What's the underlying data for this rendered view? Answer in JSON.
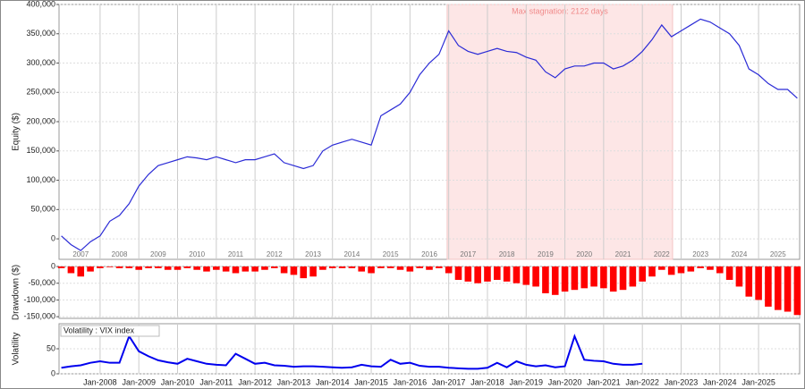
{
  "chart_data": [
    {
      "type": "line",
      "y_label": "Equity ($)",
      "x": [
        2007,
        2007.25,
        2007.5,
        2007.75,
        2008,
        2008.25,
        2008.5,
        2008.75,
        2009,
        2009.25,
        2009.5,
        2009.75,
        2010,
        2010.25,
        2010.5,
        2010.75,
        2011,
        2011.25,
        2011.5,
        2011.75,
        2012,
        2012.25,
        2012.5,
        2012.75,
        2013,
        2013.25,
        2013.5,
        2013.75,
        2014,
        2014.25,
        2014.5,
        2014.75,
        2015,
        2015.25,
        2015.5,
        2015.75,
        2016,
        2016.25,
        2016.5,
        2016.75,
        2017,
        2017.25,
        2017.5,
        2017.75,
        2018,
        2018.25,
        2018.5,
        2018.75,
        2019,
        2019.25,
        2019.5,
        2019.75,
        2020,
        2020.25,
        2020.5,
        2020.75,
        2021,
        2021.25,
        2021.5,
        2021.75,
        2022,
        2022.25,
        2022.5,
        2022.75,
        2023,
        2023.25,
        2023.5,
        2023.75,
        2024,
        2024.25,
        2024.5,
        2024.75,
        2025,
        2025.25,
        2025.5,
        2025.75,
        2026
      ],
      "values": [
        5000,
        -10000,
        -20000,
        -5000,
        5000,
        30000,
        40000,
        60000,
        90000,
        110000,
        125000,
        130000,
        135000,
        140000,
        138000,
        135000,
        140000,
        135000,
        130000,
        135000,
        135000,
        140000,
        145000,
        130000,
        125000,
        120000,
        125000,
        150000,
        160000,
        165000,
        170000,
        165000,
        160000,
        210000,
        220000,
        230000,
        250000,
        280000,
        300000,
        315000,
        355000,
        330000,
        320000,
        315000,
        320000,
        325000,
        320000,
        318000,
        310000,
        305000,
        285000,
        275000,
        290000,
        295000,
        295000,
        300000,
        300000,
        290000,
        295000,
        305000,
        320000,
        340000,
        365000,
        345000,
        355000,
        365000,
        375000,
        370000,
        360000,
        350000,
        330000,
        290000,
        280000,
        265000,
        255000,
        255000,
        240000
      ],
      "color": "#2b2bd6",
      "xlim": [
        2006.94,
        2026.06
      ],
      "ylim": [
        -35000,
        400000
      ],
      "yticks": [
        0,
        {
          "value": 50000,
          "label": "50,000"
        },
        {
          "value": 100000,
          "label": "100,000"
        },
        {
          "value": 150000,
          "label": "150,000"
        },
        {
          "value": 200000,
          "label": "200,000"
        },
        {
          "value": 250000,
          "label": "250,000"
        },
        {
          "value": 300000,
          "label": "300,000"
        },
        {
          "value": 350000,
          "label": "350,000"
        },
        {
          "value": 400000,
          "label": "400,000"
        }
      ],
      "xticks": [
        {
          "value": 2007.5,
          "label": "2007"
        },
        {
          "value": 2008.5,
          "label": "2008"
        },
        {
          "value": 2009.5,
          "label": "2009"
        },
        {
          "value": 2010.5,
          "label": "2010"
        },
        {
          "value": 2011.5,
          "label": "2011"
        },
        {
          "value": 2012.5,
          "label": "2012"
        },
        {
          "value": 2013.5,
          "label": "2013"
        },
        {
          "value": 2014.5,
          "label": "2014"
        },
        {
          "value": 2015.5,
          "label": "2015"
        },
        {
          "value": 2016.5,
          "label": "2016"
        },
        {
          "value": 2017.5,
          "label": "2017"
        },
        {
          "value": 2018.5,
          "label": "2018"
        },
        {
          "value": 2019.5,
          "label": "2019"
        },
        {
          "value": 2020.5,
          "label": "2020"
        },
        {
          "value": 2021.5,
          "label": "2021"
        },
        {
          "value": 2022.5,
          "label": "2022"
        },
        {
          "value": 2023.5,
          "label": "2023"
        },
        {
          "value": 2024.5,
          "label": "2024"
        },
        {
          "value": 2025.5,
          "label": "2025"
        }
      ],
      "annotation": {
        "label": "Max stagnation: 2122 days",
        "start": 2016.96,
        "end": 2022.78
      }
    },
    {
      "type": "bar",
      "y_label": "Drawdown ($)",
      "x": [
        2007,
        2007.25,
        2007.5,
        2007.75,
        2008,
        2008.25,
        2008.5,
        2008.75,
        2009,
        2009.25,
        2009.5,
        2009.75,
        2010,
        2010.25,
        2010.5,
        2010.75,
        2011,
        2011.25,
        2011.5,
        2011.75,
        2012,
        2012.25,
        2012.5,
        2012.75,
        2013,
        2013.25,
        2013.5,
        2013.75,
        2014,
        2014.25,
        2014.5,
        2014.75,
        2015,
        2015.25,
        2015.5,
        2015.75,
        2016,
        2016.25,
        2016.5,
        2016.75,
        2017,
        2017.25,
        2017.5,
        2017.75,
        2018,
        2018.25,
        2018.5,
        2018.75,
        2019,
        2019.25,
        2019.5,
        2019.75,
        2020,
        2020.25,
        2020.5,
        2020.75,
        2021,
        2021.25,
        2021.5,
        2021.75,
        2022,
        2022.25,
        2022.5,
        2022.75,
        2023,
        2023.25,
        2023.5,
        2023.75,
        2024,
        2024.25,
        2024.5,
        2024.75,
        2025,
        2025.25,
        2025.5,
        2025.75,
        2026
      ],
      "values": [
        -5000,
        -20000,
        -30000,
        -15000,
        -5000,
        -2000,
        -5000,
        -5000,
        -10000,
        -5000,
        -5000,
        -10000,
        -10000,
        -5000,
        -10000,
        -15000,
        -10000,
        -15000,
        -20000,
        -15000,
        -15000,
        -10000,
        -5000,
        -20000,
        -25000,
        -35000,
        -30000,
        -10000,
        -5000,
        -5000,
        -5000,
        -15000,
        -20000,
        -5000,
        -5000,
        -10000,
        -15000,
        -5000,
        -10000,
        -5000,
        -20000,
        -40000,
        -45000,
        -50000,
        -45000,
        -40000,
        -45000,
        -50000,
        -55000,
        -60000,
        -80000,
        -85000,
        -75000,
        -70000,
        -65000,
        -60000,
        -65000,
        -75000,
        -70000,
        -60000,
        -45000,
        -30000,
        -10000,
        -25000,
        -20000,
        -15000,
        -5000,
        -10000,
        -20000,
        -40000,
        -60000,
        -90000,
        -100000,
        -120000,
        -130000,
        -135000,
        -145000
      ],
      "color": "#ff0000",
      "xlim": [
        2006.94,
        2026.06
      ],
      "ylim": [
        -155000,
        0
      ],
      "yticks": [
        0,
        {
          "value": -50000,
          "label": "-50,000"
        },
        {
          "value": -100000,
          "label": "-100,000"
        },
        {
          "value": -150000,
          "label": "-150,000"
        }
      ]
    },
    {
      "type": "line",
      "y_label": "Volatility",
      "x": [
        2007,
        2007.25,
        2007.5,
        2007.75,
        2008,
        2008.25,
        2008.5,
        2008.75,
        2009,
        2009.25,
        2009.5,
        2009.75,
        2010,
        2010.25,
        2010.5,
        2010.75,
        2011,
        2011.25,
        2011.5,
        2011.75,
        2012,
        2012.25,
        2012.5,
        2012.75,
        2013,
        2013.25,
        2013.5,
        2013.75,
        2014,
        2014.25,
        2014.5,
        2014.75,
        2015,
        2015.25,
        2015.5,
        2015.75,
        2016,
        2016.25,
        2016.5,
        2016.75,
        2017,
        2017.25,
        2017.5,
        2017.75,
        2018,
        2018.25,
        2018.5,
        2018.75,
        2019,
        2019.25,
        2019.5,
        2019.75,
        2020,
        2020.25,
        2020.5,
        2020.75,
        2021,
        2021.25,
        2021.5,
        2021.75,
        2022
      ],
      "series": [
        {
          "name": "Volatility : VIX index",
          "color": "#0000ee",
          "values": [
            12,
            15,
            17,
            22,
            25,
            22,
            22,
            75,
            45,
            35,
            27,
            23,
            20,
            30,
            25,
            20,
            18,
            17,
            40,
            30,
            20,
            22,
            17,
            16,
            14,
            15,
            15,
            14,
            13,
            12,
            13,
            18,
            15,
            14,
            28,
            20,
            22,
            16,
            14,
            14,
            12,
            11,
            10,
            10,
            12,
            22,
            13,
            25,
            18,
            15,
            17,
            13,
            15,
            75,
            28,
            26,
            25,
            20,
            18,
            18,
            20
          ]
        }
      ],
      "xlim": [
        2006.94,
        2026.06
      ],
      "ylim": [
        0,
        100
      ],
      "yticks": [
        0,
        50
      ],
      "xticks": [
        {
          "value": 2008,
          "label": "Jan-2008"
        },
        {
          "value": 2009,
          "label": "Jan-2009"
        },
        {
          "value": 2010,
          "label": "Jan-2010"
        },
        {
          "value": 2011,
          "label": "Jan-2011"
        },
        {
          "value": 2012,
          "label": "Jan-2012"
        },
        {
          "value": 2013,
          "label": "Jan-2013"
        },
        {
          "value": 2014,
          "label": "Jan-2014"
        },
        {
          "value": 2015,
          "label": "Jan-2015"
        },
        {
          "value": 2016,
          "label": "Jan-2016"
        },
        {
          "value": 2017,
          "label": "Jan-2017"
        },
        {
          "value": 2018,
          "label": "Jan-2018"
        },
        {
          "value": 2019,
          "label": "Jan-2019"
        },
        {
          "value": 2020,
          "label": "Jan-2020"
        },
        {
          "value": 2021,
          "label": "Jan-2021"
        },
        {
          "value": 2022,
          "label": "Jan-2022"
        },
        {
          "value": 2023,
          "label": "Jan-2023"
        },
        {
          "value": 2024,
          "label": "Jan-2024"
        },
        {
          "value": 2025,
          "label": "Jan-2025"
        }
      ]
    }
  ]
}
